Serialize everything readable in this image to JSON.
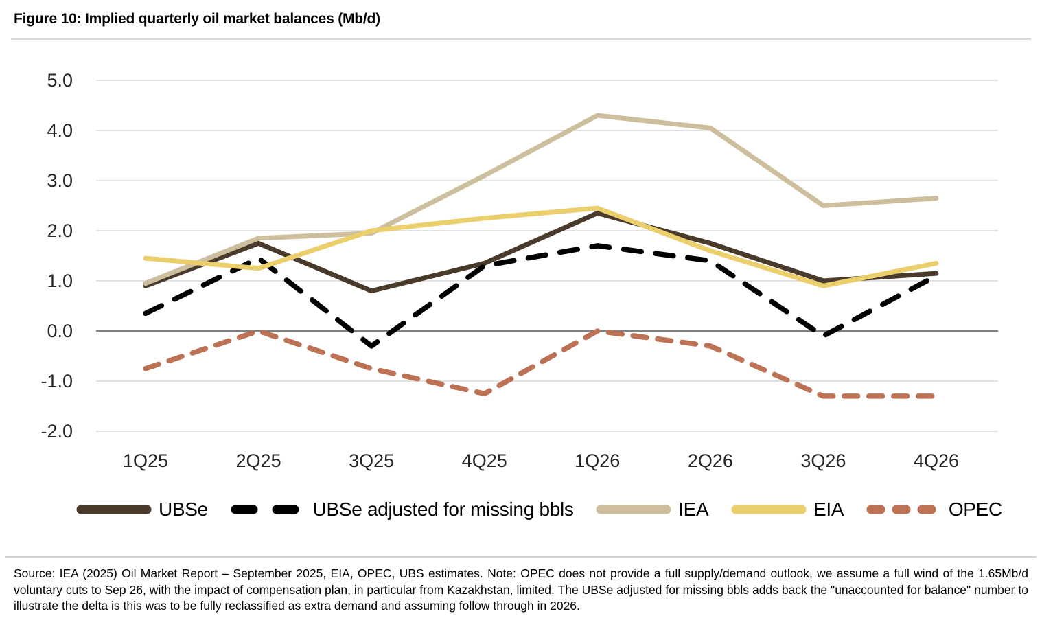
{
  "figure": {
    "title": "Figure 10: Implied quarterly oil market balances (Mb/d)",
    "source_note": "Source: IEA (2025) Oil Market Report – September 2025, EIA, OPEC, UBS estimates. Note: OPEC does not provide a full supply/demand outlook, we assume a full wind of the 1.65Mb/d voluntary cuts to Sep 26, with the impact of compensation plan, in particular from Kazakhstan, limited. The UBSe adjusted for missing bbls adds back the \"unaccounted for balance\" number to illustrate the delta is this was to be fully reclassified as extra demand and assuming follow through in 2026."
  },
  "chart_data": {
    "type": "line",
    "title": "Implied quarterly oil market balances (Mb/d)",
    "categories": [
      "1Q25",
      "2Q25",
      "3Q25",
      "4Q25",
      "1Q26",
      "2Q26",
      "3Q26",
      "4Q26"
    ],
    "series": [
      {
        "name": "UBSe",
        "color": "#493a2c",
        "dash": null,
        "values": [
          0.9,
          1.75,
          0.8,
          1.35,
          2.35,
          1.75,
          1.0,
          1.15
        ]
      },
      {
        "name": "UBSe adjusted for missing bbls",
        "color": "#000000",
        "dash": [
          26,
          21
        ],
        "values": [
          0.35,
          1.45,
          -0.3,
          1.3,
          1.7,
          1.4,
          -0.1,
          1.1
        ]
      },
      {
        "name": "IEA",
        "color": "#cdbf9d",
        "dash": null,
        "values": [
          0.95,
          1.85,
          1.95,
          3.1,
          4.3,
          4.05,
          2.5,
          2.65
        ]
      },
      {
        "name": "EIA",
        "color": "#ebcf6d",
        "dash": null,
        "values": [
          1.45,
          1.25,
          2.0,
          2.25,
          2.45,
          1.6,
          0.9,
          1.35
        ]
      },
      {
        "name": "OPEC",
        "color": "#bd7155",
        "dash": [
          20,
          16
        ],
        "values": [
          -0.75,
          0.0,
          -0.75,
          -1.25,
          0.0,
          -0.3,
          -1.3,
          -1.3
        ]
      }
    ],
    "ylim": [
      -2.0,
      5.0
    ],
    "ytick_labels": [
      "5.0",
      "4.0",
      "3.0",
      "2.0",
      "1.0",
      "0.0",
      "-1.0",
      "-2.0"
    ],
    "xlabel": "",
    "ylabel": "",
    "grid": "horizontal",
    "zero_line": true,
    "legend_position": "bottom"
  },
  "style": {
    "grid_color": "#d9d9d9",
    "zero_line_color": "#808080",
    "axis_text_color": "#262626"
  }
}
